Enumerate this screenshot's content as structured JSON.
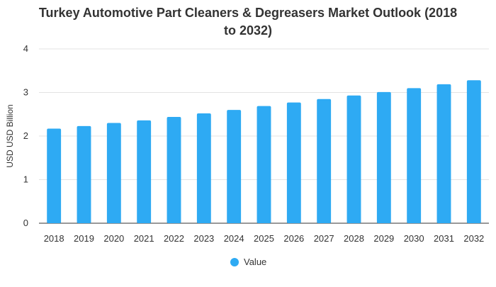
{
  "chart_data": {
    "type": "bar",
    "title": "Turkey Automotive Part Cleaners & Degreasers Market Outlook (2018 to 2032)",
    "title_lines": [
      "Turkey Automotive Part Cleaners & Degreasers Market Outlook (2018",
      "to 2032)"
    ],
    "xlabel": "",
    "ylabel": "USD USD Billion",
    "categories": [
      "2018",
      "2019",
      "2020",
      "2021",
      "2022",
      "2023",
      "2024",
      "2025",
      "2026",
      "2027",
      "2028",
      "2029",
      "2030",
      "2031",
      "2032"
    ],
    "series": [
      {
        "name": "Value",
        "values": [
          2.17,
          2.23,
          2.3,
          2.36,
          2.44,
          2.52,
          2.6,
          2.69,
          2.77,
          2.85,
          2.93,
          3.01,
          3.1,
          3.19,
          3.28
        ]
      }
    ],
    "ylim": [
      0,
      4
    ],
    "yticks": [
      0,
      1,
      2,
      3,
      4
    ],
    "grid": true,
    "legend_position": "bottom-center",
    "colors": {
      "bar": "#2eaaf3",
      "grid": "#e3e3e3",
      "axis": "#333333",
      "title": "#333333",
      "text": "#333333"
    }
  }
}
